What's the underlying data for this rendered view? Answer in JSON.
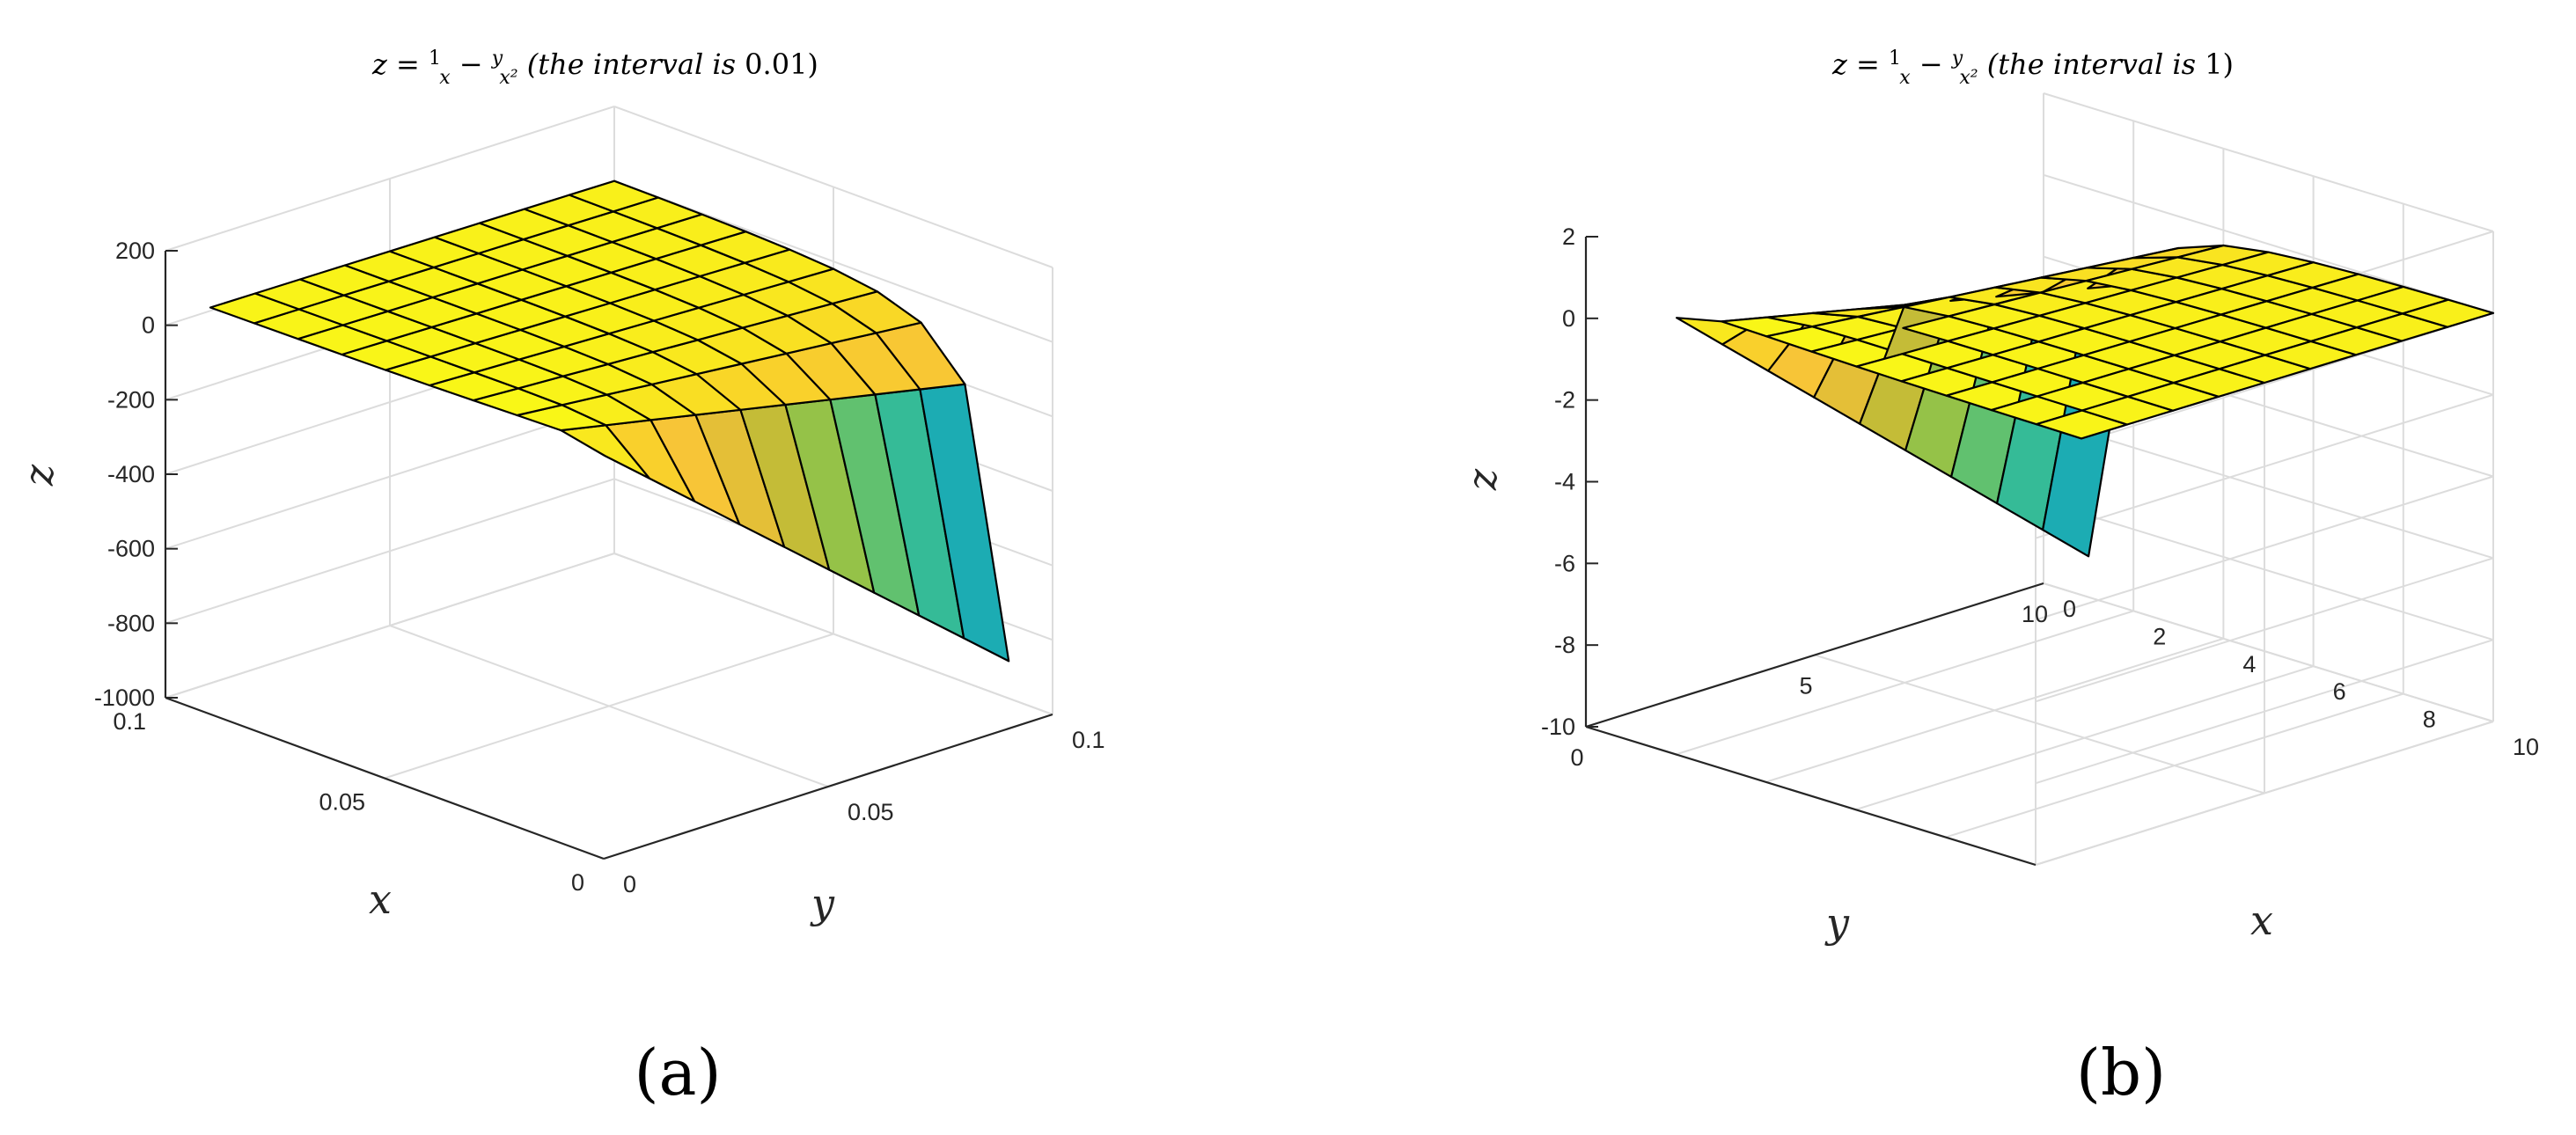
{
  "chart_data": [
    {
      "type": "surface",
      "panel_label": "(a)",
      "title": "z = 1/x − y/x² (the interval is 0.01)",
      "title_parts": {
        "lhs": "z = ",
        "f1_num": "1",
        "f1_den": "x",
        "minus": " − ",
        "f2_num": "y",
        "f2_den": "x²",
        "suffix_italic": "(the interval is",
        "suffix_value": " 0.01)"
      },
      "function": "z = 1/x - y/x^2",
      "x_range": [
        0.01,
        0.1
      ],
      "y_range": [
        0.01,
        0.1
      ],
      "interval": 0.01,
      "z_range": [
        -1000,
        200
      ],
      "xlabel": "x",
      "ylabel": "y",
      "zlabel": "z",
      "x_ticks": [
        "0",
        "0.05",
        "0.1"
      ],
      "y_ticks": [
        "0",
        "0.05",
        "0.1"
      ],
      "z_ticks": [
        "-1000",
        "-800",
        "-600",
        "-400",
        "-200",
        "0",
        "200"
      ],
      "grid": true,
      "colormap": "parula"
    },
    {
      "type": "surface",
      "panel_label": "(b)",
      "title": "z = 1/x − y/x² (the interval is 1)",
      "title_parts": {
        "lhs": "z = ",
        "f1_num": "1",
        "f1_den": "x",
        "minus": " − ",
        "f2_num": "y",
        "f2_den": "x²",
        "suffix_italic": "(the interval is",
        "suffix_value": " 1)"
      },
      "function": "z = 1/x - y/x^2",
      "x_range": [
        1,
        10
      ],
      "y_range": [
        1,
        10
      ],
      "interval": 1,
      "z_range": [
        -10,
        2
      ],
      "xlabel": "x",
      "ylabel": "y",
      "zlabel": "z",
      "x_ticks": [
        "0",
        "2",
        "4",
        "6",
        "8",
        "10"
      ],
      "y_ticks": [
        "0",
        "5",
        "10"
      ],
      "z_ticks": [
        "-10",
        "-8",
        "-6",
        "-4",
        "-2",
        "0",
        "2"
      ],
      "grid": true,
      "colormap": "parula"
    }
  ],
  "colors": {
    "parula": [
      "#3e26a8",
      "#4440e5",
      "#2f68f5",
      "#1f8fd6",
      "#17a9b8",
      "#3cbf8f",
      "#8bc34c",
      "#d0bb33",
      "#f7c23a",
      "#f9d229",
      "#f9fb15"
    ],
    "grid": "#dcdcdc",
    "axis": "#262626"
  }
}
